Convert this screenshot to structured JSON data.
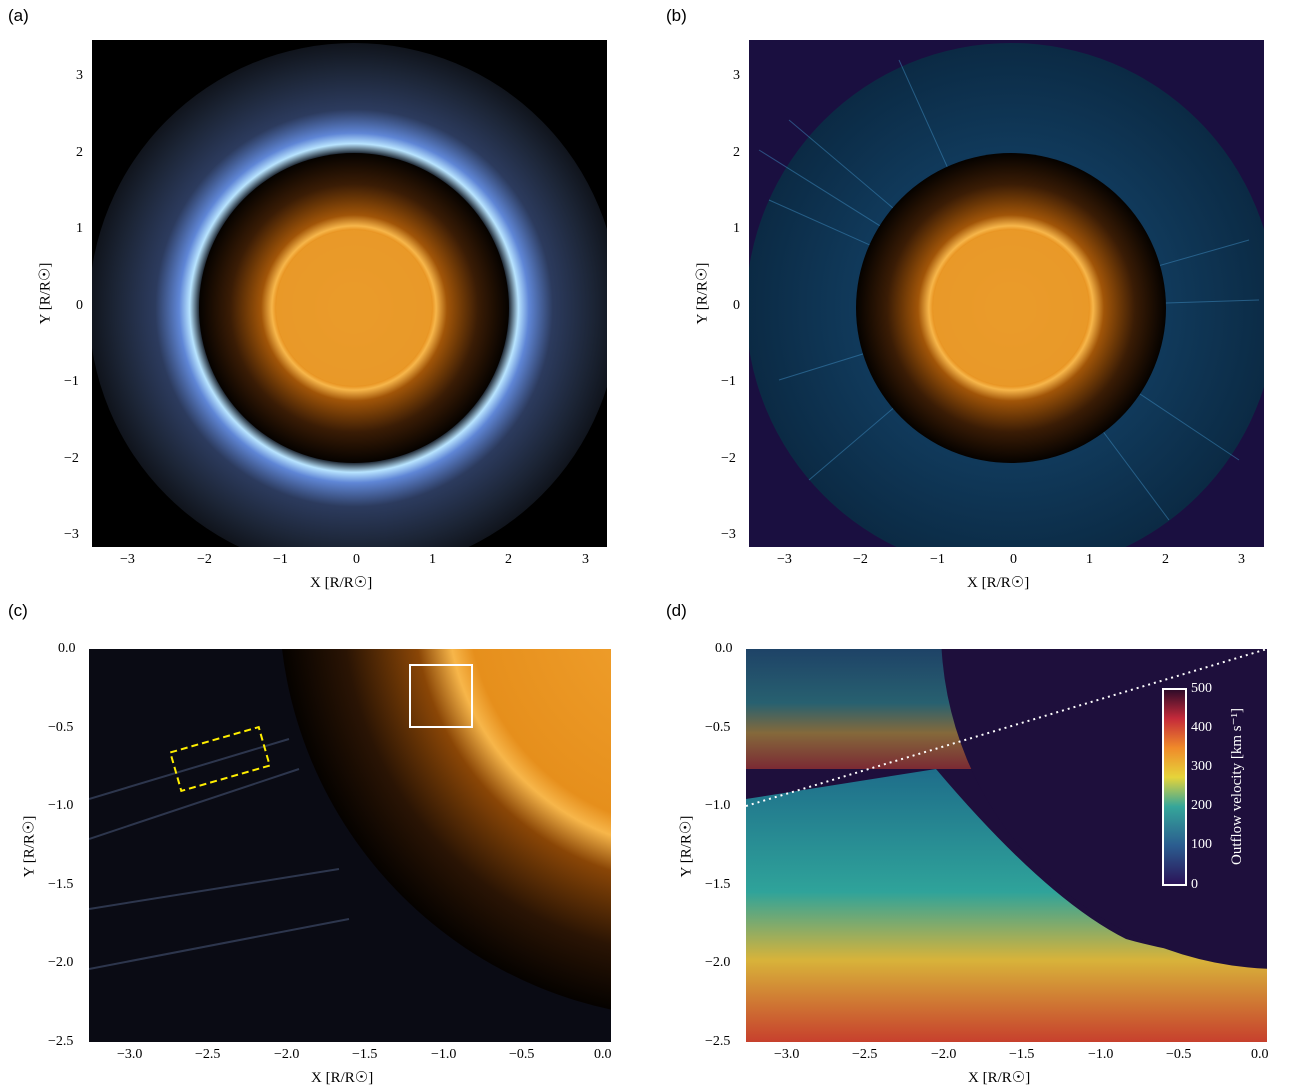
{
  "panels": {
    "a": {
      "letter": "(a)",
      "xlabel": "X [R/R☉]",
      "ylabel": "Y [R/R☉]",
      "xticks": [
        "−3",
        "−2",
        "−1",
        "0",
        "1",
        "2",
        "3"
      ],
      "yticks": [
        "3",
        "2",
        "1",
        "0",
        "−1",
        "−2",
        "−3"
      ]
    },
    "b": {
      "letter": "(b)",
      "xlabel": "X [R/R☉]",
      "ylabel": "Y [R/R☉]",
      "xticks": [
        "−3",
        "−2",
        "−1",
        "0",
        "1",
        "2",
        "3"
      ],
      "yticks": [
        "3",
        "2",
        "1",
        "0",
        "−1",
        "−2",
        "−3"
      ]
    },
    "c": {
      "letter": "(c)",
      "xlabel": "X [R/R☉]",
      "ylabel": "Y [R/R☉]",
      "xticks": [
        "−3.0",
        "−2.5",
        "−2.0",
        "−1.5",
        "−1.0",
        "−0.5",
        "0.0"
      ],
      "yticks": [
        "0.0",
        "−0.5",
        "−1.0",
        "−1.5",
        "−2.0",
        "−2.5"
      ]
    },
    "d": {
      "letter": "(d)",
      "xlabel": "X [R/R☉]",
      "ylabel": "Y [R/R☉]",
      "xticks": [
        "−3.0",
        "−2.5",
        "−2.0",
        "−1.5",
        "−1.0",
        "−0.5",
        "0.0"
      ],
      "yticks": [
        "0.0",
        "−0.5",
        "−1.0",
        "−1.5",
        "−2.0",
        "−2.5"
      ],
      "colorbar": {
        "label": "Outflow velocity [km s⁻¹]",
        "ticks": [
          "500",
          "400",
          "300",
          "200",
          "100",
          "0"
        ],
        "range": [
          0,
          500
        ]
      }
    }
  },
  "colors": {
    "sun_core": "#f5a623",
    "sun_edge": "#b35a00",
    "corona_blue": "#8fb8ff",
    "panel_b_bg": "#1a0f40",
    "velocity_bg": "#1e0f3c",
    "annotation_yellow": "#ffee00",
    "annotation_white": "#ffffff"
  }
}
